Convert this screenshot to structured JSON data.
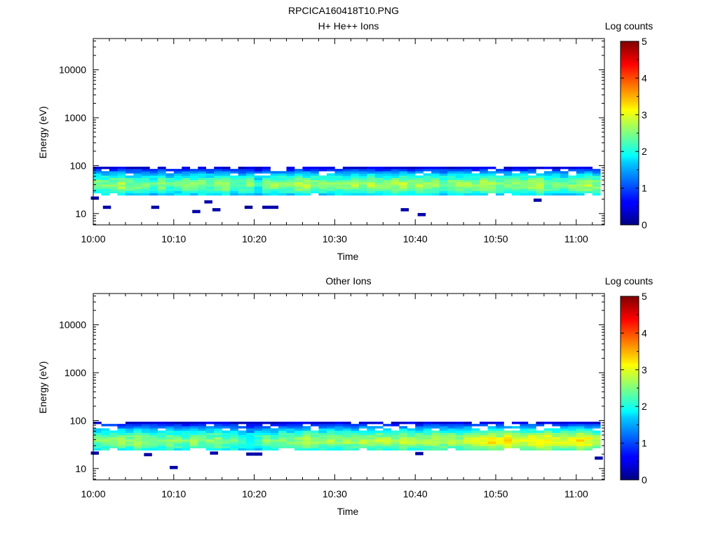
{
  "figure": {
    "title": "RPCICA160418T10.PNG"
  },
  "chart_data": [
    {
      "type": "heatmap",
      "title": "H+ He++ Ions",
      "xlabel": "Time",
      "ylabel": "Energy (eV)",
      "x_tick_labels": [
        "10:00",
        "10:10",
        "10:20",
        "10:30",
        "10:40",
        "10:50",
        "11:00"
      ],
      "y_tick_labels": [
        "10",
        "100",
        "1000",
        "10000"
      ],
      "y_scale": "log",
      "ylim": [
        5.8,
        45000
      ],
      "xlim_minutes": [
        0,
        63.5
      ],
      "colorbar": {
        "label": "Log counts",
        "ticks": [
          "0",
          "1",
          "2",
          "3",
          "4",
          "5"
        ],
        "range": [
          0,
          5
        ]
      },
      "band": {
        "e_min": 24,
        "e_max": 95,
        "peak_energy": 40
      },
      "time_step_minutes": 1,
      "peak_log_counts": [
        2.6,
        2.5,
        2.6,
        2.8,
        2.5,
        2.5,
        2.4,
        2.3,
        2.6,
        2.3,
        2.4,
        2.5,
        2.5,
        2.6,
        2.4,
        2.6,
        2.7,
        2.3,
        2.4,
        2.5,
        2.0,
        2.5,
        2.6,
        2.6,
        2.5,
        2.8,
        2.7,
        2.6,
        2.5,
        2.5,
        2.6,
        2.5,
        2.7,
        2.6,
        2.8,
        2.6,
        2.5,
        2.7,
        2.8,
        2.6,
        2.8,
        2.6,
        2.7,
        2.5,
        2.6,
        2.6,
        2.7,
        2.6,
        2.8,
        2.7,
        2.5,
        2.5,
        2.6,
        2.6,
        2.7,
        2.8,
        2.5,
        2.5,
        2.4,
        2.5,
        2.7,
        2.8,
        2.6
      ],
      "sparse_points": [
        {
          "t": 0.2,
          "e": 21,
          "v": 0.2
        },
        {
          "t": 1.7,
          "e": 13.5,
          "v": 0.2
        },
        {
          "t": 7.7,
          "e": 13.5,
          "v": 0.2
        },
        {
          "t": 12.8,
          "e": 11,
          "v": 0.2
        },
        {
          "t": 14.3,
          "e": 17.5,
          "v": 0.2
        },
        {
          "t": 15.3,
          "e": 12,
          "v": 0.2
        },
        {
          "t": 19.3,
          "e": 13.5,
          "v": 0.1
        },
        {
          "t": 21.5,
          "e": 13.5,
          "v": 0.2
        },
        {
          "t": 22.5,
          "e": 13.5,
          "v": 0.2
        },
        {
          "t": 38.7,
          "e": 12,
          "v": 0.2
        },
        {
          "t": 40.8,
          "e": 9.5,
          "v": 0.2
        },
        {
          "t": 55.2,
          "e": 19,
          "v": 0.2
        }
      ]
    },
    {
      "type": "heatmap",
      "title": "Other Ions",
      "xlabel": "Time",
      "ylabel": "Energy (eV)",
      "x_tick_labels": [
        "10:00",
        "10:10",
        "10:20",
        "10:30",
        "10:40",
        "10:50",
        "11:00"
      ],
      "y_tick_labels": [
        "10",
        "100",
        "1000",
        "10000"
      ],
      "y_scale": "log",
      "ylim": [
        5.8,
        45000
      ],
      "xlim_minutes": [
        0,
        63.5
      ],
      "colorbar": {
        "label": "Log counts",
        "ticks": [
          "0",
          "1",
          "2",
          "3",
          "4",
          "5"
        ],
        "range": [
          0,
          5
        ]
      },
      "band": {
        "e_min": 24,
        "e_max": 95,
        "peak_energy": 38
      },
      "time_step_minutes": 1,
      "peak_log_counts": [
        2.5,
        2.6,
        2.7,
        2.6,
        2.5,
        2.7,
        2.6,
        2.4,
        2.5,
        2.6,
        2.5,
        2.4,
        2.6,
        2.5,
        2.5,
        2.6,
        2.4,
        2.5,
        2.2,
        2.0,
        2.2,
        2.5,
        2.3,
        2.6,
        2.5,
        2.6,
        2.8,
        2.7,
        2.6,
        2.7,
        2.6,
        2.7,
        2.6,
        2.8,
        2.7,
        2.8,
        2.8,
        2.6,
        2.9,
        2.7,
        2.7,
        2.8,
        2.9,
        2.7,
        2.8,
        2.7,
        2.8,
        2.9,
        3.0,
        3.3,
        3.0,
        3.2,
        3.1,
        3.0,
        3.1,
        3.1,
        3.2,
        3.0,
        3.0,
        3.1,
        3.2,
        3.1,
        2.9
      ],
      "sparse_points": [
        {
          "t": 0.2,
          "e": 21,
          "v": 0.2
        },
        {
          "t": 6.8,
          "e": 19.5,
          "v": 0.2
        },
        {
          "t": 10.0,
          "e": 10.5,
          "v": 0.2
        },
        {
          "t": 15.0,
          "e": 21,
          "v": 0.2
        },
        {
          "t": 19.5,
          "e": 20,
          "v": 0.2
        },
        {
          "t": 20.5,
          "e": 20,
          "v": 0.2
        },
        {
          "t": 40.5,
          "e": 20.5,
          "v": 0.2
        },
        {
          "t": 62.8,
          "e": 16.5,
          "v": 0.2
        }
      ]
    }
  ]
}
